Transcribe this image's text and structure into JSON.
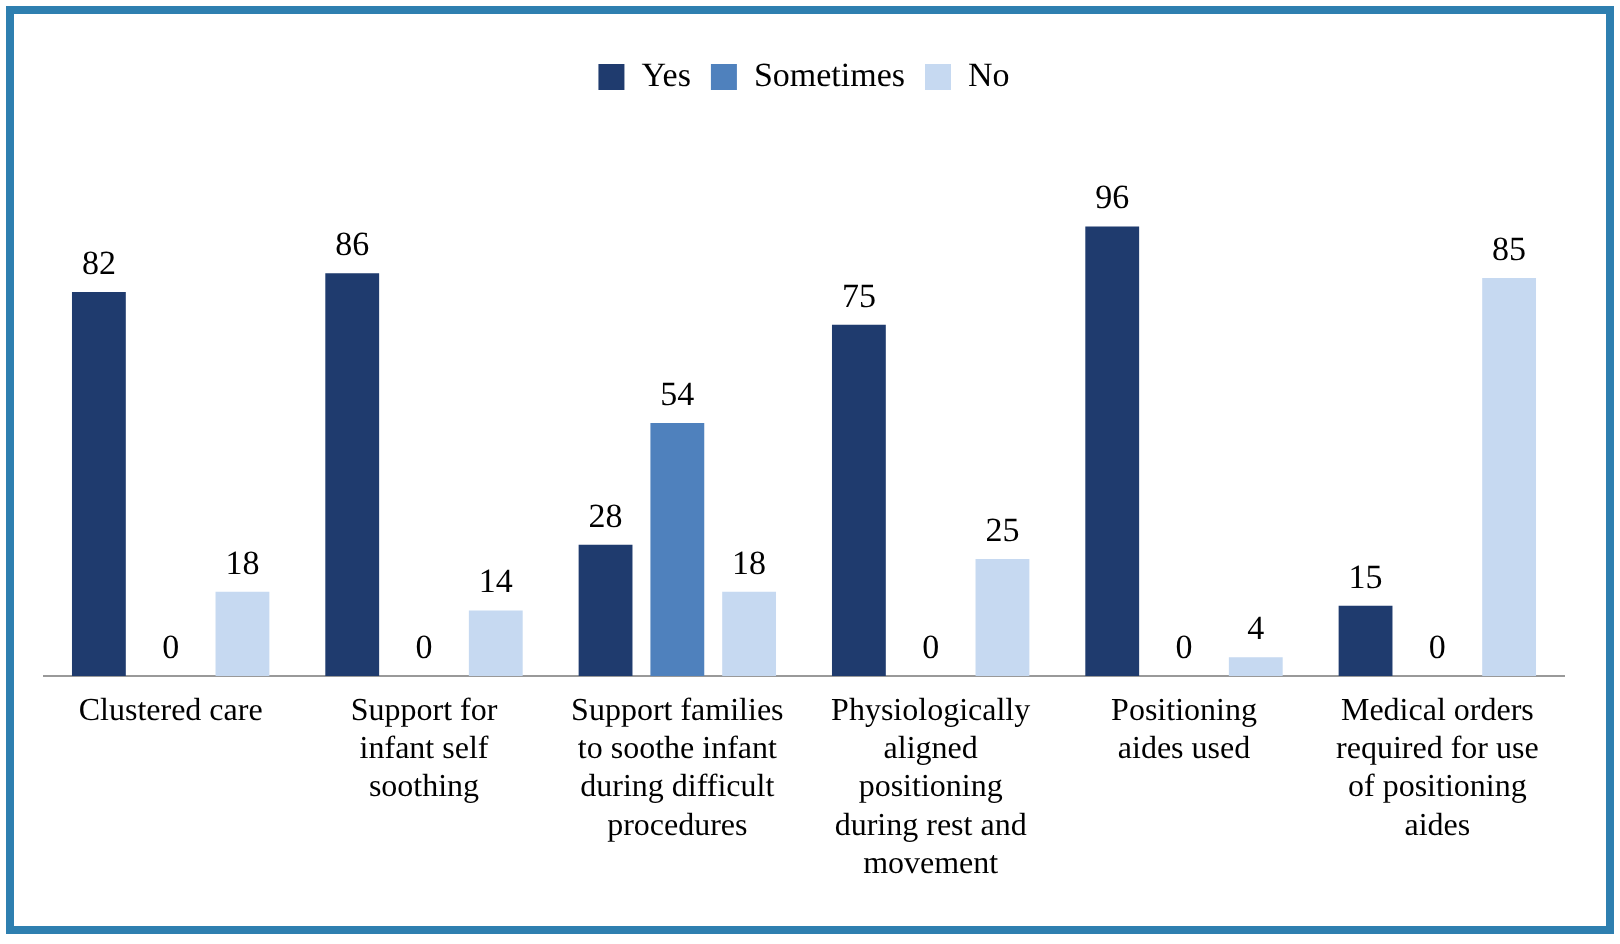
{
  "chart_data": {
    "type": "bar",
    "categories": [
      "Clustered care",
      "Support for infant self soothing",
      "Support families to soothe infant during difficult procedures",
      "Physiologically aligned positioning during rest and movement",
      "Positioning aides used",
      "Medical orders required for use of positioning aides"
    ],
    "series": [
      {
        "name": "Yes",
        "color": "#1f3b6e",
        "values": [
          82,
          86,
          28,
          75,
          96,
          15
        ]
      },
      {
        "name": "Sometimes",
        "color": "#4f81bd",
        "values": [
          0,
          0,
          54,
          0,
          0,
          0
        ]
      },
      {
        "name": "No",
        "color": "#c6d9f1",
        "values": [
          18,
          14,
          18,
          25,
          4,
          85
        ]
      }
    ],
    "data_labels": true,
    "legend": "top",
    "grid": false
  }
}
